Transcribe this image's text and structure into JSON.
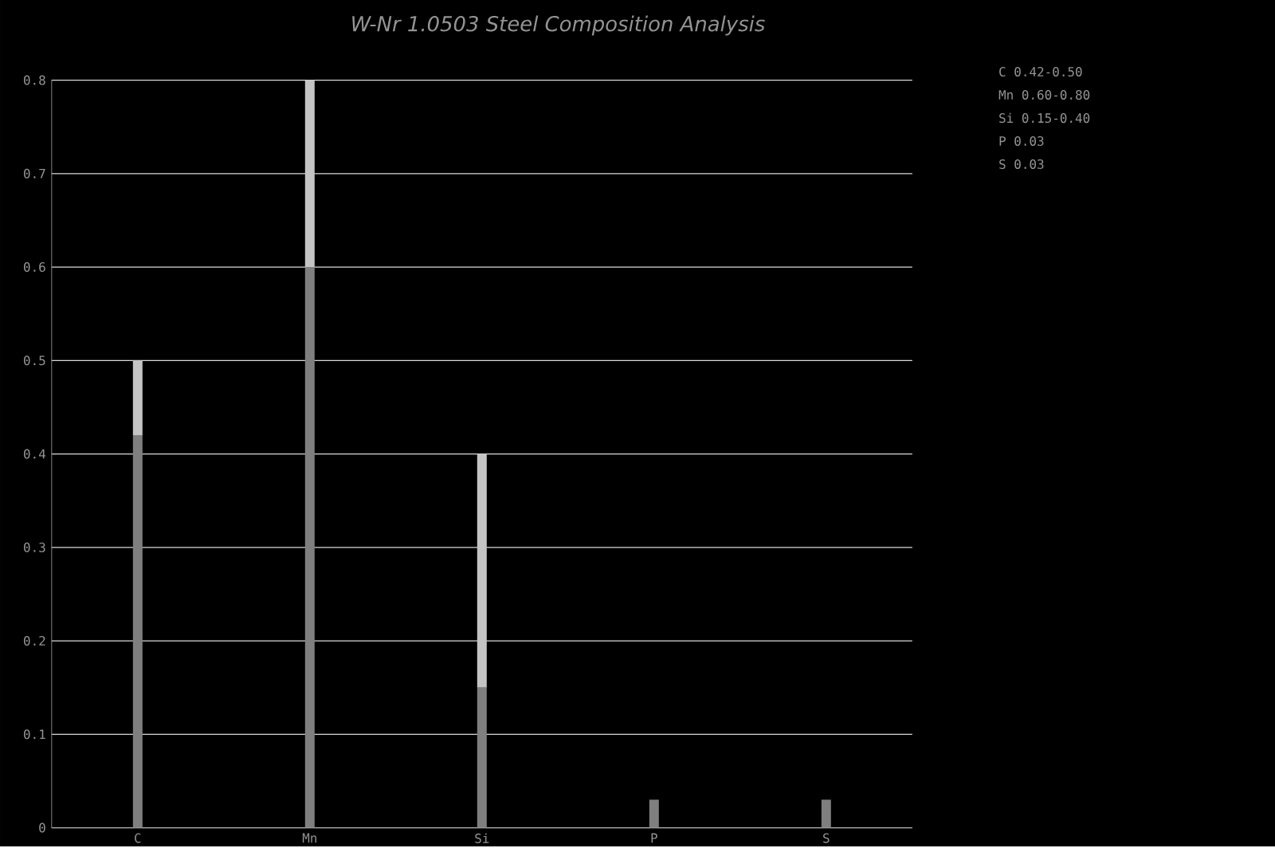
{
  "chart_data": {
    "type": "bar",
    "title": "W-Nr 1.0503 Steel Composition Analysis",
    "categories": [
      "C",
      "Mn",
      "Si",
      "P",
      "S"
    ],
    "stacked": true,
    "series": [
      {
        "color": "#7f7f7f",
        "values": [
          0.42,
          0.6,
          0.15,
          0.03,
          0.03
        ]
      },
      {
        "color": "#c4c4c4",
        "values": [
          0.08,
          0.2,
          0.25,
          null,
          null
        ]
      }
    ],
    "ylim": [
      0,
      0.8
    ],
    "yticks": [
      0,
      0.1,
      0.2,
      0.3,
      0.4,
      0.5,
      0.6,
      0.7,
      0.8
    ],
    "grid": "y",
    "annotations": [
      "C  0.42-0.50",
      "Mn 0.60-0.80",
      "Si 0.15-0.40",
      "P  0.03",
      "S  0.03"
    ]
  }
}
